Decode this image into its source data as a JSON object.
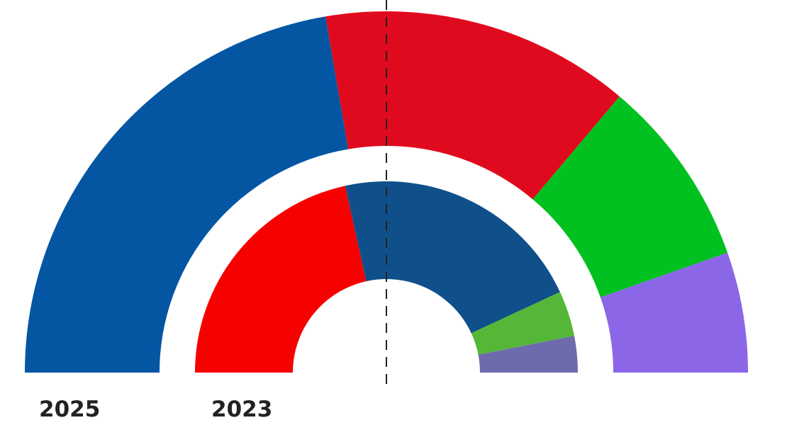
{
  "chart_data": {
    "type": "pie",
    "subtype": "parliament-semicircle",
    "total": 65,
    "rings": [
      {
        "label": "2025",
        "ring": "outer",
        "values": [
          29,
          18,
          11,
          7
        ],
        "colors": [
          "#0456A3",
          "#E00A1E",
          "#00C11F",
          "#8B67E7"
        ]
      },
      {
        "label": "2023",
        "ring": "inner",
        "values": [
          28,
          28,
          5,
          4
        ],
        "colors": [
          "#F60000",
          "#10508A",
          "#55B737",
          "#6E6BAD"
        ]
      }
    ],
    "majority_line": true,
    "majority_line_color": "#222222"
  }
}
